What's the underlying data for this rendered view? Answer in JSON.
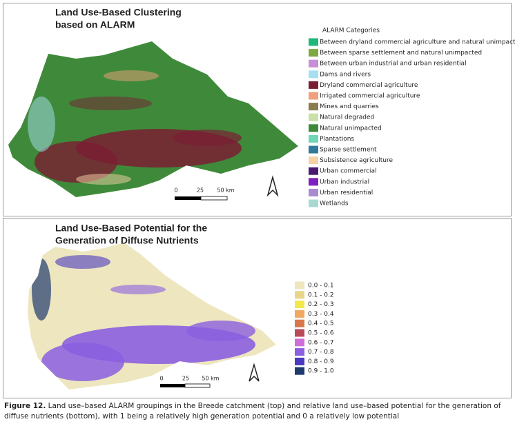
{
  "panels": [
    {
      "title": [
        "Land Use-Based Clustering",
        "based on ALARM"
      ],
      "legend": {
        "title": "ALARM Categories",
        "items": [
          {
            "label": "Between dryland commercial agriculture and natural unimpacted",
            "color": "#1fb87a"
          },
          {
            "label": "Between sparse settlement and natural unimpacted",
            "color": "#7fa844"
          },
          {
            "label": "Between urban industrial and urban residential",
            "color": "#c78fd6"
          },
          {
            "label": "Dams and rivers",
            "color": "#a7dff0"
          },
          {
            "label": "Dryland commercial agriculture",
            "color": "#7a1e33"
          },
          {
            "label": "Irrigated commercial agriculture",
            "color": "#f0a07a"
          },
          {
            "label": "Mines and quarries",
            "color": "#8c7a50"
          },
          {
            "label": "Natural degraded",
            "color": "#c9e0a8"
          },
          {
            "label": "Natural unimpacted",
            "color": "#3f8a3a"
          },
          {
            "label": "Plantations",
            "color": "#6fd6b8"
          },
          {
            "label": "Sparse settlement",
            "color": "#2f7a9a"
          },
          {
            "label": "Subsistence agriculture",
            "color": "#f5d2a8"
          },
          {
            "label": "Urban commercial",
            "color": "#4a1a70"
          },
          {
            "label": "Urban industrial",
            "color": "#7d1fc0"
          },
          {
            "label": "Urban residential",
            "color": "#a98bd0"
          },
          {
            "label": "Wetlands",
            "color": "#a8d9d0"
          }
        ]
      },
      "scale": [
        "0",
        "25",
        "50 km"
      ]
    },
    {
      "title": [
        "Land Use-Based Potential for the",
        "Generation of Diffuse Nutrients"
      ],
      "legend": {
        "items": [
          {
            "label": "0.0 - 0.1",
            "color": "#eee6bf"
          },
          {
            "label": "0.1 - 0.2",
            "color": "#e8d58a"
          },
          {
            "label": "0.2 - 0.3",
            "color": "#f2e84a"
          },
          {
            "label": "0.3 - 0.4",
            "color": "#f0a860"
          },
          {
            "label": "0.4 - 0.5",
            "color": "#d9774a"
          },
          {
            "label": "0.5 - 0.6",
            "color": "#b84a5a"
          },
          {
            "label": "0.6 - 0.7",
            "color": "#cf6ed8"
          },
          {
            "label": "0.7 - 0.8",
            "color": "#8b5fe0"
          },
          {
            "label": "0.8 - 0.9",
            "color": "#4a3ac0"
          },
          {
            "label": "0.9 - 1.0",
            "color": "#1f3a6e"
          }
        ]
      },
      "scale": [
        "0",
        "25",
        "50 km"
      ]
    }
  ],
  "caption": {
    "label": "Figure 12.",
    "text": "Land use–based ALARM groupings in the Breede catchment (top) and relative land use–based potential for the generation of diffuse nutrients (bottom), with 1 being a relatively high generation potential and 0 a relatively low potential"
  }
}
